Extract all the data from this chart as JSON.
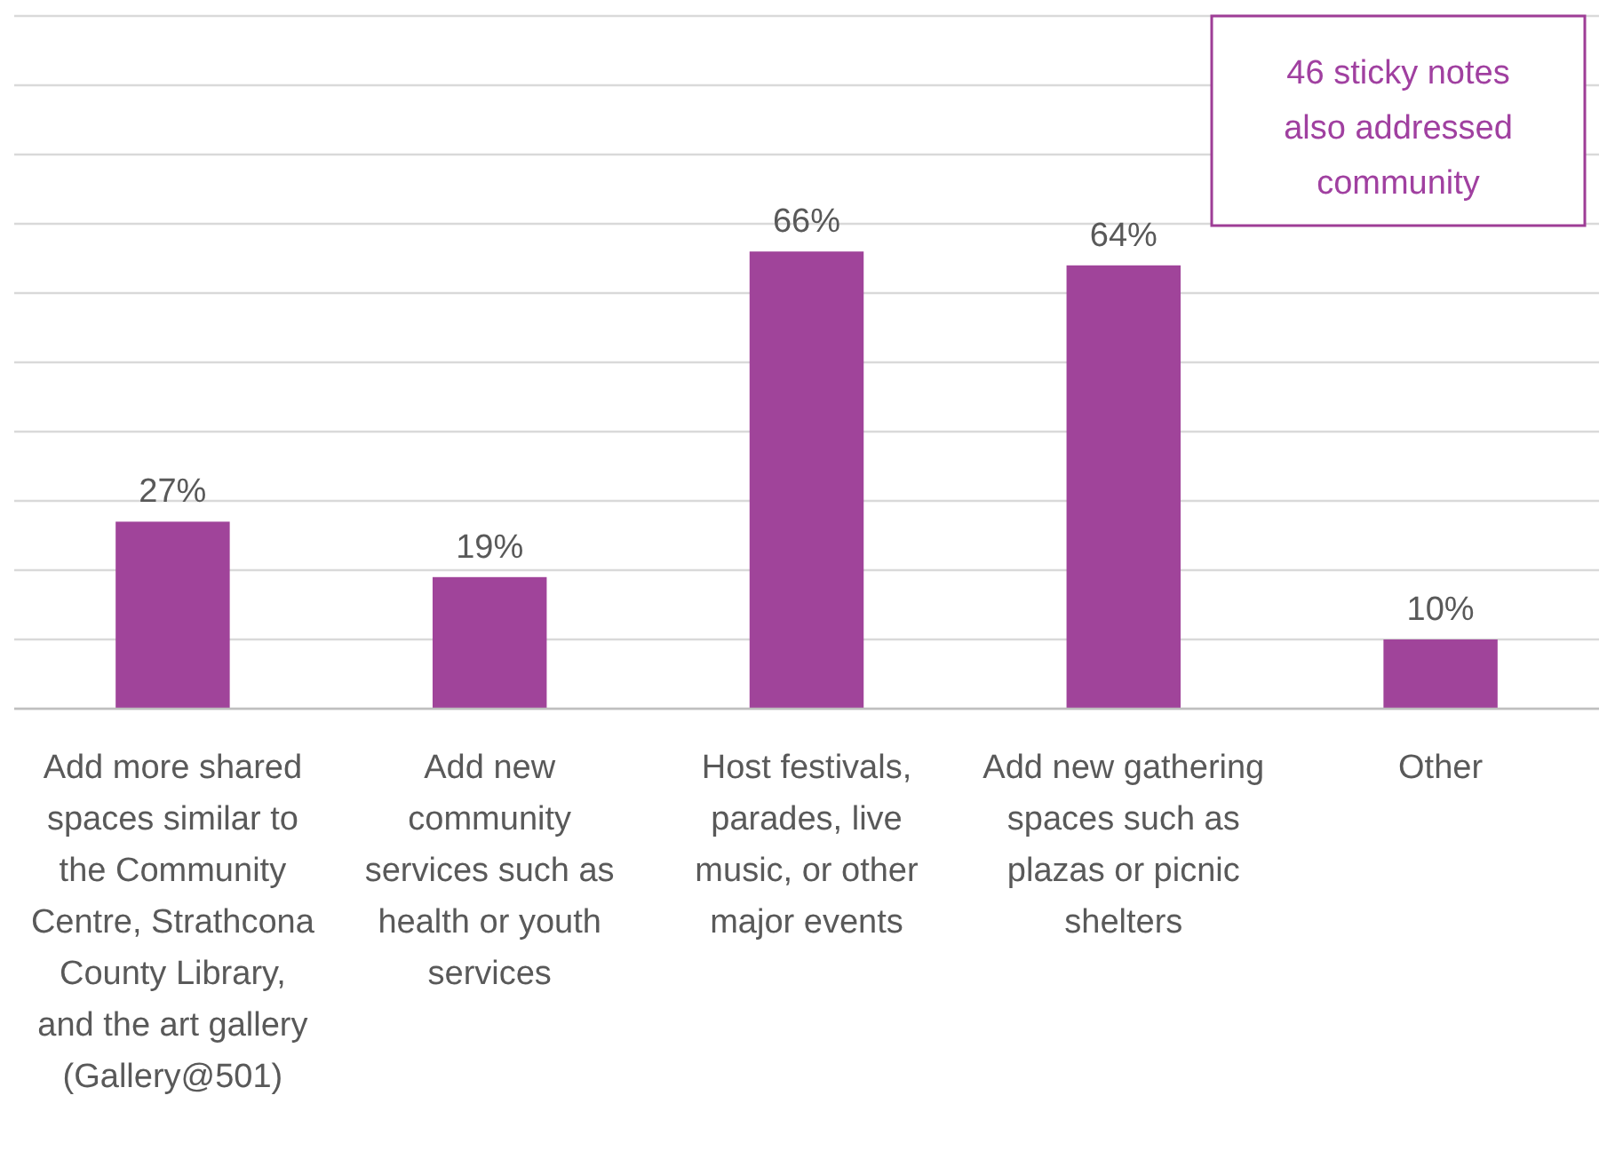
{
  "chart_data": {
    "type": "bar",
    "categories": [
      "Add more shared spaces similar to the Community Centre, Strathcona County Library, and the art gallery (Gallery@501)",
      "Add new community services such as health or youth services",
      "Host festivals, parades, live music, or other major events",
      "Add new gathering spaces such as plazas or picnic shelters",
      "Other"
    ],
    "values": [
      27,
      19,
      66,
      64,
      10
    ],
    "value_labels": [
      "27%",
      "19%",
      "66%",
      "64%",
      "10%"
    ],
    "color": "#a0449a",
    "ylim": [
      0,
      100
    ],
    "yticks": [
      {
        "value": 0,
        "label": null
      },
      {
        "value": 10,
        "label": null
      },
      {
        "value": 20,
        "label": null
      },
      {
        "value": 30,
        "label": null
      },
      {
        "value": 40,
        "label": null
      },
      {
        "value": 50,
        "label": null
      },
      {
        "value": 60,
        "label": null
      },
      {
        "value": 70,
        "label": null
      },
      {
        "value": 80,
        "label": null
      },
      {
        "value": 90,
        "label": null
      },
      {
        "value": 100,
        "label": null
      }
    ],
    "grid": "y",
    "tick_labels": "x",
    "annotations": [
      "46 sticky notes also addressed community"
    ]
  }
}
